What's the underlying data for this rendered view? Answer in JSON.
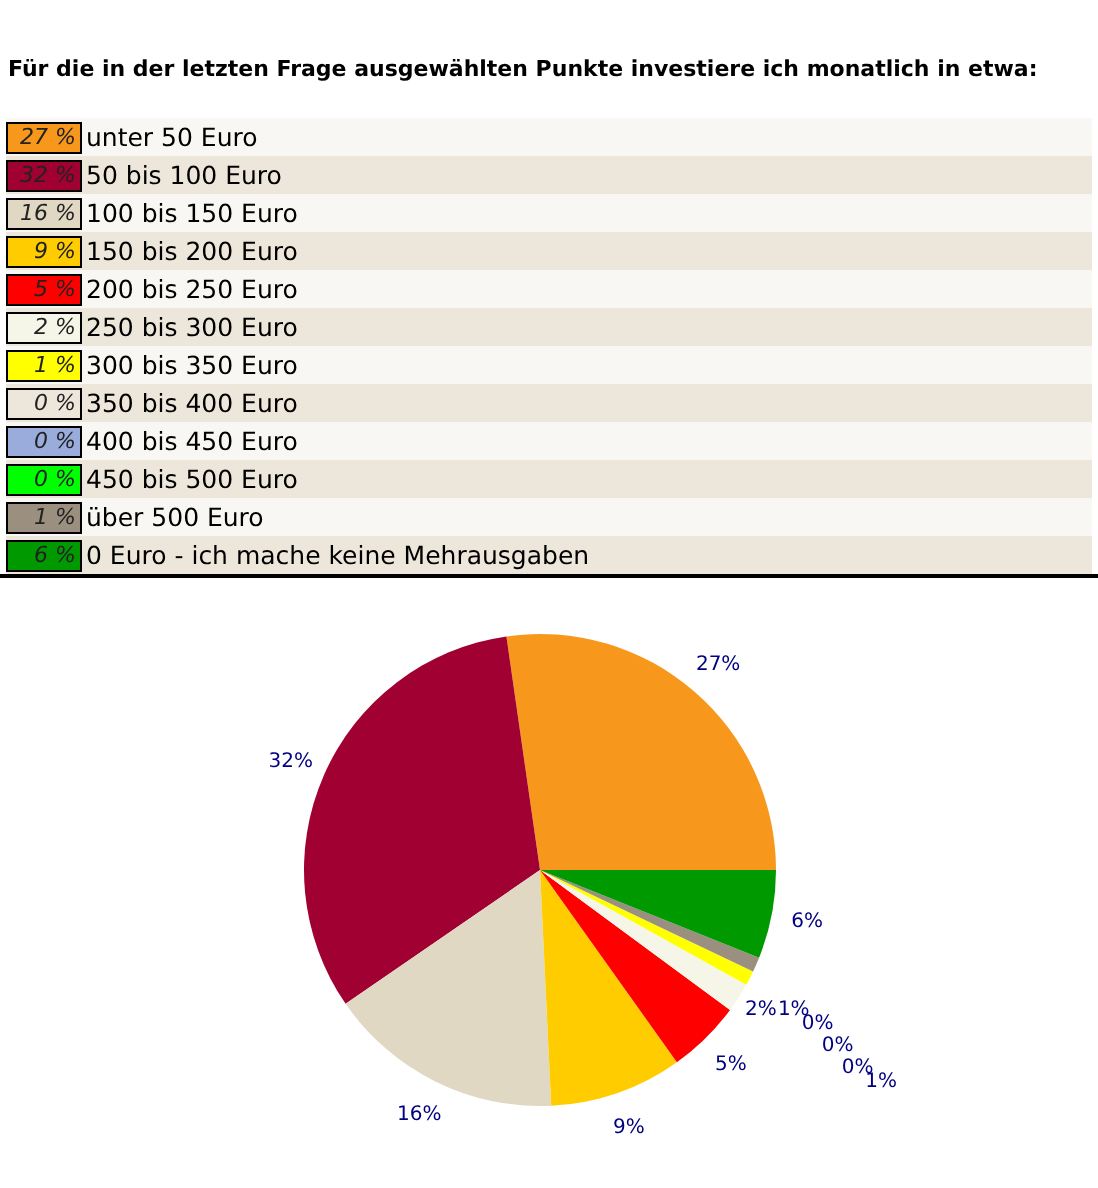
{
  "chart_data": {
    "type": "pie",
    "title": "Für die in der letzten Frage ausgewählten Punkte investiere ich monatlich in etwa:",
    "categories": [
      "unter 50 Euro",
      "50 bis 100 Euro",
      "100 bis 150 Euro",
      "150 bis 200 Euro",
      "200 bis 250 Euro",
      "250 bis 300 Euro",
      "300 bis 350 Euro",
      "350 bis 400 Euro",
      "400 bis 450 Euro",
      "450 bis 500 Euro",
      "über 500 Euro",
      "0 Euro - ich mache keine Mehrausgaben"
    ],
    "values": [
      27,
      32,
      16,
      9,
      5,
      2,
      1,
      0,
      0,
      0,
      1,
      6
    ],
    "colors": [
      "#f7981d",
      "#a10033",
      "#e1d8c4",
      "#ffcc00",
      "#ff0000",
      "#f6f6e8",
      "#ffff00",
      "#ece6db",
      "#99acdb",
      "#00ff00",
      "#9b9080",
      "#009900"
    ],
    "value_labels": [
      "27 %",
      "32 %",
      "16 %",
      "9 %",
      "5 %",
      "2 %",
      "1 %",
      "0 %",
      "0 %",
      "0 %",
      "1 %",
      "6 %"
    ],
    "legend": "top"
  }
}
